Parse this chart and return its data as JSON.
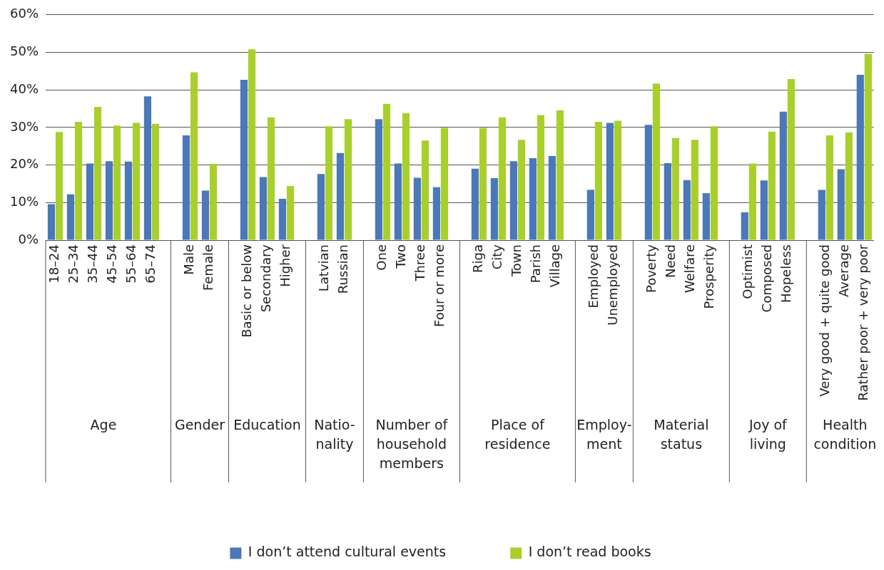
{
  "chart_data": {
    "type": "bar",
    "categories": [
      "18–24",
      "25–34",
      "35–44",
      "45–54",
      "55–64",
      "65–74",
      null,
      "Male",
      "Female",
      null,
      "Basic or below",
      "Secondary",
      "Higher",
      null,
      "Latvian",
      "Russian",
      null,
      "One",
      "Two",
      "Three",
      "Four or more",
      null,
      "Riga",
      "City",
      "Town",
      "Parish",
      "Village",
      null,
      "Employed",
      "Unemployed",
      null,
      "Poverty",
      "Need",
      "Welfare",
      "Prosperity",
      null,
      "Optimist",
      "Composed",
      "Hopeless",
      null,
      "Very good + quite good",
      "Average",
      "Rather poor + very poor"
    ],
    "series": [
      {
        "name": "I don’t attend cultural events",
        "color": "#4a78b8",
        "values": [
          9.6,
          12.2,
          20.4,
          21.0,
          20.9,
          38.3,
          null,
          27.9,
          13.2,
          null,
          42.7,
          16.8,
          11.0,
          null,
          17.6,
          23.2,
          null,
          32.2,
          20.4,
          16.6,
          14.1,
          null,
          19.0,
          16.5,
          21.0,
          21.8,
          22.4,
          null,
          13.4,
          31.2,
          null,
          30.7,
          20.5,
          16.0,
          12.5,
          null,
          7.4,
          15.9,
          34.2,
          null,
          13.4,
          18.9,
          44.0
        ]
      },
      {
        "name": "I don’t read books",
        "color": "#a9cf2c",
        "values": [
          28.8,
          31.5,
          35.5,
          30.5,
          31.2,
          31.0,
          null,
          44.7,
          20.3,
          null,
          50.8,
          32.7,
          14.4,
          null,
          30.3,
          32.2,
          null,
          36.3,
          33.8,
          26.5,
          29.9,
          null,
          29.9,
          32.7,
          26.7,
          33.3,
          34.6,
          null,
          31.5,
          31.8,
          null,
          41.7,
          27.2,
          26.7,
          30.3,
          null,
          20.4,
          28.9,
          42.9,
          null,
          27.9,
          28.7,
          49.6
        ]
      }
    ],
    "annotations": [
      "Age",
      "Gender",
      "Education",
      "Natio-\nnality",
      "Number of household members",
      "Place of residence",
      "Employ-\nment",
      "Material status",
      "Joy of living",
      "Health condition"
    ],
    "ylim": [
      0,
      60
    ],
    "yticks": [
      {
        "value": 0,
        "label": "0%"
      },
      {
        "value": 10,
        "label": "10%"
      },
      {
        "value": 20,
        "label": "20%"
      },
      {
        "value": 30,
        "label": "30%"
      },
      {
        "value": 40,
        "label": "40%"
      },
      {
        "value": 50,
        "label": "50%"
      },
      {
        "value": 60,
        "label": "60%"
      }
    ],
    "grid": "y",
    "legend": "bottom"
  }
}
